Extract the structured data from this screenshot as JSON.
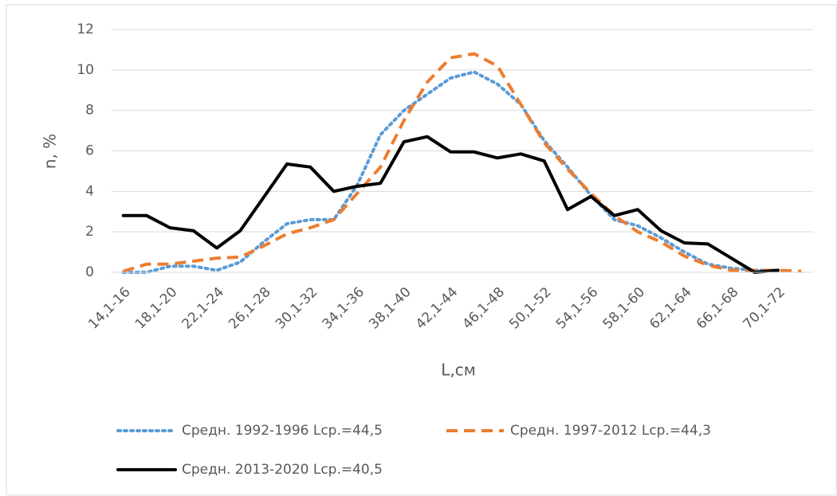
{
  "chart_data": {
    "type": "line",
    "xlabel": "L,см",
    "ylabel": "n, %",
    "categories": [
      "14,1-16",
      null,
      "18,1-20",
      null,
      "22,1-24",
      null,
      "26,1-28",
      null,
      "30,1-32",
      null,
      "34,1-36",
      null,
      "38,1-40",
      null,
      "42,1-44",
      null,
      "46,1-48",
      null,
      "50,1-52",
      null,
      "54,1-56",
      null,
      "58,1-60",
      null,
      "62,1-64",
      null,
      "66,1-68",
      null,
      "70,1-72",
      null
    ],
    "series": [
      {
        "name": "Средн. 1992-1996 Lср.=44,5",
        "color": "#5b9bd5",
        "dash": "dotted",
        "values": [
          0,
          0,
          0.3,
          0.3,
          0.1,
          0.5,
          1.5,
          2.4,
          2.6,
          2.6,
          4.3,
          6.8,
          8.0,
          8.8,
          9.6,
          9.9,
          9.3,
          8.3,
          6.5,
          5.2,
          3.8,
          2.6,
          2.3,
          1.7,
          1.0,
          0.4,
          0.2,
          0.1,
          0.1,
          null
        ]
      },
      {
        "name": "Средн. 1997-2012 Lср.=44,3",
        "color": "#ed7d31",
        "dash": "dashed",
        "values": [
          0.05,
          0.4,
          0.4,
          0.55,
          0.7,
          0.75,
          1.3,
          1.9,
          2.2,
          2.6,
          3.9,
          5.2,
          7.5,
          9.4,
          10.6,
          10.8,
          10.2,
          8.3,
          6.4,
          5.1,
          3.9,
          2.8,
          2.0,
          1.5,
          0.8,
          0.35,
          0.1,
          0.1,
          0.1,
          0.05
        ]
      },
      {
        "name": "Средн. 2013-2020 Lср.=40,5",
        "color": "#000000",
        "dash": "solid",
        "values": [
          2.8,
          2.8,
          2.2,
          2.05,
          1.2,
          2.05,
          3.7,
          5.35,
          5.2,
          4.0,
          4.25,
          4.4,
          6.45,
          6.7,
          5.95,
          5.95,
          5.65,
          5.85,
          5.5,
          3.1,
          3.75,
          2.8,
          3.1,
          2.05,
          1.45,
          1.4,
          0.7,
          0.0,
          0.1,
          null
        ]
      }
    ],
    "ylim": [
      0,
      12
    ],
    "yticks": [
      0,
      2,
      4,
      6,
      8,
      10,
      12
    ],
    "grid": true
  }
}
